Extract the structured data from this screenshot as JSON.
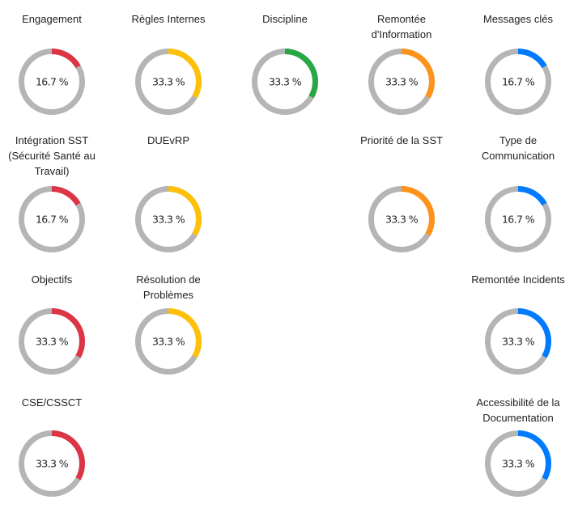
{
  "chart_data": {
    "type": "pie",
    "variant": "donut-grid",
    "track_color": "#b5b5b5",
    "items": [
      {
        "title": "Engagement",
        "value": 16.7,
        "label": "16.7 %",
        "color": "#dc3545",
        "col": 0,
        "row": 0
      },
      {
        "title": "Règles Internes",
        "value": 33.3,
        "label": "33.3 %",
        "color": "#ffc107",
        "col": 1,
        "row": 0
      },
      {
        "title": "Discipline",
        "value": 33.3,
        "label": "33.3 %",
        "color": "#28a745",
        "col": 2,
        "row": 0
      },
      {
        "title": "Remontée d'Information",
        "value": 33.3,
        "label": "33.3 %",
        "color": "#fd931a",
        "col": 3,
        "row": 0
      },
      {
        "title": "Messages clés",
        "value": 16.7,
        "label": "16.7 %",
        "color": "#007bff",
        "col": 4,
        "row": 0
      },
      {
        "title": "Intégration SST (Sécurité Santé au Travail)",
        "value": 16.7,
        "label": "16.7 %",
        "color": "#dc3545",
        "col": 0,
        "row": 1
      },
      {
        "title": "DUEvRP",
        "value": 33.3,
        "label": "33.3 %",
        "color": "#ffc107",
        "col": 1,
        "row": 1
      },
      {
        "title": "Priorité de la SST",
        "value": 33.3,
        "label": "33.3 %",
        "color": "#fd931a",
        "col": 3,
        "row": 1
      },
      {
        "title": "Type de Communication",
        "value": 16.7,
        "label": "16.7 %",
        "color": "#007bff",
        "col": 4,
        "row": 1
      },
      {
        "title": "Objectifs",
        "value": 33.3,
        "label": "33.3 %",
        "color": "#dc3545",
        "col": 0,
        "row": 2
      },
      {
        "title": "Résolution de Problèmes",
        "value": 33.3,
        "label": "33.3 %",
        "color": "#ffc107",
        "col": 1,
        "row": 2
      },
      {
        "title": "Remontée Incidents",
        "value": 33.3,
        "label": "33.3 %",
        "color": "#007bff",
        "col": 4,
        "row": 2
      },
      {
        "title": "CSE/CSSCT",
        "value": 33.3,
        "label": "33.3 %",
        "color": "#dc3545",
        "col": 0,
        "row": 3
      },
      {
        "title": "Accessibilité de la Documentation",
        "value": 33.3,
        "label": "33.3 %",
        "color": "#007bff",
        "col": 4,
        "row": 3
      }
    ]
  }
}
